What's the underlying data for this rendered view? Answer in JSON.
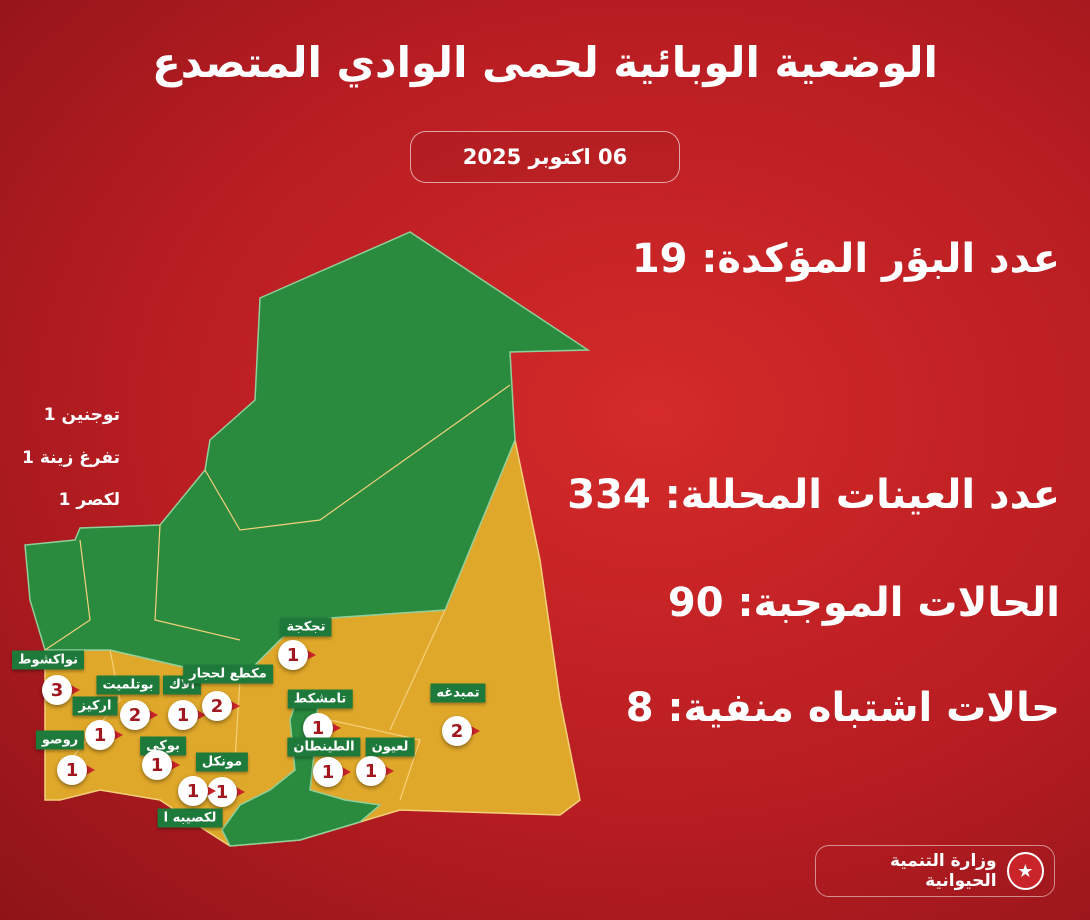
{
  "title": "الوضعية الوبائية لحمى الوادي المتصدع",
  "date": "06 اكتوبر 2025",
  "stats": [
    {
      "text": "عدد البؤر المؤكدة: 19"
    },
    {
      "text": "عدد العينات المحللة: 334"
    },
    {
      "text": "الحالات الموجبة: 90"
    },
    {
      "text": "حالات اشتباه منفية: 8"
    }
  ],
  "side_list": [
    "توجنين 1",
    "تفرغ زينة 1",
    "لكصر 1"
  ],
  "colors": {
    "background": "#b81d22",
    "affected_region": "#e0a82a",
    "unaffected_region": "#2a8a3e",
    "label_bg": "#1e7a3a"
  },
  "markers": [
    {
      "label": "نواكشوط",
      "count": "3"
    },
    {
      "label": "اركيز",
      "count": "1"
    },
    {
      "label": "روصو",
      "count": "1"
    },
    {
      "label": "بوتلميت",
      "count": "2"
    },
    {
      "label": "ألاك",
      "count": "1"
    },
    {
      "label": "مكطع لحجار",
      "count": "2"
    },
    {
      "label": "بوكي",
      "count": "1"
    },
    {
      "label": "مونكل",
      "count": "1"
    },
    {
      "label": "لكصيبه ا",
      "count": "1"
    },
    {
      "label": "تجكجة",
      "count": "1"
    },
    {
      "label": "تامشكط",
      "count": "1"
    },
    {
      "label": "الطينطان",
      "count": "1"
    },
    {
      "label": "لعيون",
      "count": "1"
    },
    {
      "label": "تمبدغه",
      "count": "2"
    }
  ],
  "footer": {
    "ministry": "وزارة التنمية الحيوانية",
    "seal_icon": "ministry-seal-icon"
  }
}
